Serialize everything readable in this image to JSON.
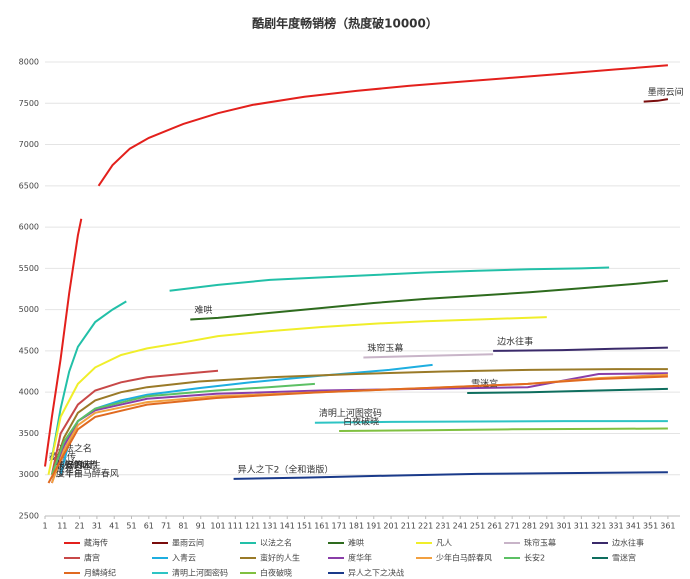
{
  "chart_data": {
    "type": "line",
    "title": "酷剧年度畅销榜（热度破10000）",
    "xlim": [
      1,
      368
    ],
    "ylim": [
      2500,
      8000
    ],
    "xticks": [
      1,
      11,
      21,
      31,
      41,
      51,
      61,
      71,
      81,
      91,
      101,
      111,
      121,
      131,
      141,
      151,
      161,
      171,
      181,
      191,
      201,
      211,
      221,
      231,
      241,
      251,
      261,
      271,
      281,
      291,
      301,
      311,
      321,
      331,
      341,
      351,
      361
    ],
    "yticks": [
      2500,
      3000,
      3500,
      4000,
      4500,
      5000,
      5500,
      6000,
      6500,
      7000,
      7500,
      8000
    ],
    "grid": true,
    "series": [
      {
        "name": "藏海传",
        "label": "藏海传",
        "color": "#e3201c",
        "x": [
          1,
          5,
          10,
          15,
          20,
          22,
          27,
          32,
          40,
          50,
          61,
          81,
          101,
          121,
          151,
          181,
          211,
          241,
          271,
          301,
          331,
          361
        ],
        "values": [
          3100,
          3700,
          4400,
          5200,
          5900,
          6100,
          null,
          6500,
          6750,
          6950,
          7080,
          7250,
          7380,
          7480,
          7580,
          7650,
          7710,
          7760,
          7810,
          7860,
          7910,
          7960
        ]
      },
      {
        "name": "墨雨云间",
        "label": "墨雨云间",
        "color": "#7a0c0c",
        "x": [
          347,
          355,
          361
        ],
        "values": [
          7520,
          7530,
          7550
        ]
      },
      {
        "name": "以法之名",
        "label": "以法之名",
        "color": "#22c0a8",
        "x": [
          5,
          10,
          15,
          20,
          30,
          40,
          48,
          60,
          73,
          101,
          131,
          161,
          191,
          221,
          251,
          281,
          311,
          327
        ],
        "values": [
          3200,
          3800,
          4250,
          4550,
          4850,
          5000,
          5100,
          null,
          5230,
          5300,
          5360,
          5390,
          5420,
          5450,
          5470,
          5490,
          5500,
          5510
        ]
      },
      {
        "name": "难哄",
        "label": "难哄",
        "color": "#2e6b1e",
        "x": [
          85,
          101,
          131,
          161,
          191,
          221,
          251,
          281,
          311,
          341,
          361
        ],
        "values": [
          4880,
          4900,
          4960,
          5020,
          5080,
          5130,
          5170,
          5210,
          5260,
          5310,
          5350
        ]
      },
      {
        "name": "凡人",
        "label": "凡人修仙传",
        "color": "#f0ee2a",
        "x": [
          3,
          10,
          20,
          30,
          45,
          60,
          80,
          101,
          131,
          161,
          191,
          221,
          251,
          291
        ],
        "values": [
          3000,
          3700,
          4100,
          4300,
          4450,
          4530,
          4600,
          4680,
          4740,
          4790,
          4830,
          4860,
          4880,
          4910
        ]
      },
      {
        "name": "珠帘玉幕",
        "label": "珠帘玉幕",
        "color": "#c8b4c8",
        "x": [
          185,
          220,
          260
        ],
        "values": [
          4420,
          4440,
          4460
        ]
      },
      {
        "name": "边水往事",
        "label": "边水往事",
        "color": "#3a2a6a",
        "x": [
          260,
          300,
          330,
          361
        ],
        "values": [
          4500,
          4510,
          4525,
          4540
        ]
      },
      {
        "name": "唐宫",
        "label": "唐宫",
        "color": "#c84848",
        "x": [
          5,
          10,
          20,
          30,
          45,
          60,
          80,
          101
        ],
        "values": [
          3000,
          3500,
          3850,
          4020,
          4120,
          4180,
          4220,
          4260
        ]
      },
      {
        "name": "入青云",
        "label": "入青云",
        "color": "#1eaee0",
        "x": [
          10,
          15,
          20,
          30,
          45,
          60,
          90,
          120,
          160,
          200,
          225
        ],
        "values": [
          3000,
          3400,
          3650,
          3800,
          3900,
          3970,
          4050,
          4120,
          4200,
          4270,
          4330
        ]
      },
      {
        "name": "蛮好的人生",
        "label": "蛮好的人生",
        "color": "#9a7a28",
        "x": [
          5,
          12,
          20,
          30,
          45,
          60,
          90,
          131,
          181,
          231,
          281,
          331,
          361
        ],
        "values": [
          3000,
          3450,
          3750,
          3900,
          4000,
          4060,
          4130,
          4180,
          4220,
          4250,
          4270,
          4280,
          4280
        ]
      },
      {
        "name": "度华年",
        "label": "度华年",
        "color": "#8a3ea8",
        "x": [
          5,
          12,
          20,
          30,
          60,
          100,
          160,
          220,
          280,
          321,
          361
        ],
        "values": [
          2900,
          3350,
          3650,
          3780,
          3920,
          3980,
          4020,
          4040,
          4060,
          4220,
          4230
        ]
      },
      {
        "name": "少年白马醉春风",
        "label": "少年白马醉春风",
        "color": "#f2a040",
        "x": [
          5,
          12,
          20,
          30,
          60,
          100,
          160,
          220,
          280,
          321,
          361
        ],
        "values": [
          2900,
          3300,
          3600,
          3750,
          3880,
          3950,
          4000,
          4050,
          4100,
          4170,
          4210
        ]
      },
      {
        "name": "长安2",
        "label": "长安24计",
        "color": "#5cc064",
        "x": [
          5,
          12,
          20,
          30,
          60,
          100,
          130,
          157
        ],
        "values": [
          3000,
          3400,
          3650,
          3800,
          3950,
          4020,
          4060,
          4100
        ]
      },
      {
        "name": "雪迷宫",
        "label": "雪迷宫",
        "color": "#0e6e5e",
        "x": [
          245,
          281,
          321,
          361
        ],
        "values": [
          3990,
          4000,
          4020,
          4040
        ]
      },
      {
        "name": "月鳞绮纪",
        "label": null,
        "color": "#e06a20",
        "x": [
          3,
          12,
          20,
          30,
          60,
          100,
          160,
          220,
          280,
          321,
          361
        ],
        "values": [
          2900,
          3250,
          3550,
          3700,
          3850,
          3930,
          4000,
          4050,
          4100,
          4160,
          4190
        ]
      },
      {
        "name": "清明上河图密码",
        "label": "清明上河图密码",
        "color": "#2ec4c4",
        "x": [
          157,
          201,
          251,
          301,
          361
        ],
        "values": [
          3630,
          3640,
          3645,
          3650,
          3650
        ]
      },
      {
        "name": "白夜破晓",
        "label": "白夜破晓",
        "color": "#80c040",
        "x": [
          171,
          221,
          271,
          321,
          361
        ],
        "values": [
          3530,
          3540,
          3550,
          3555,
          3560
        ]
      },
      {
        "name": "异人之下之决战",
        "label": "异人之下2（全和谐版）",
        "color": "#1a3a8a",
        "x": [
          110,
          151,
          201,
          251,
          301,
          361
        ],
        "values": [
          2950,
          2965,
          2990,
          3010,
          3020,
          3030
        ]
      }
    ]
  }
}
